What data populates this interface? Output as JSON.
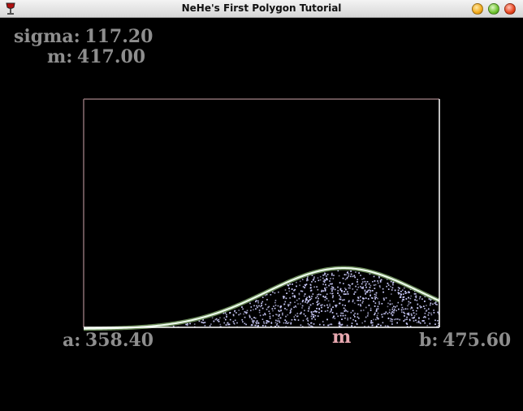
{
  "window": {
    "title": "NeHe's First Polygon Tutorial",
    "buttons": {
      "minimize": "minimize-icon",
      "maximize": "maximize-icon",
      "close": "close-icon"
    },
    "app_icon": "wine-glass-icon"
  },
  "parameters": {
    "sigma_label": "sigma:",
    "sigma_value": "117.20",
    "m_label": "m:",
    "m_value": "417.00",
    "a_label": "a:",
    "a_value": "358.40",
    "b_label": "b:",
    "b_value": "475.60",
    "m_marker": "m"
  },
  "chart_data": {
    "type": "area",
    "title": "",
    "xlabel": "",
    "ylabel": "",
    "description_marks": "normal distribution curve with random points sampled under it",
    "mean": 417.0,
    "sigma": 117.2,
    "a": 358.4,
    "b": 475.6,
    "colors": {
      "background": "#000000",
      "frame_top_left": "#8a6f72",
      "frame_right": "#ffffff",
      "curve": "#f2fff2",
      "curve_glow": "#6b8a5a",
      "points": "#cfcfff",
      "text": "#8e8e8e",
      "marker": "#e8a8b0"
    }
  }
}
